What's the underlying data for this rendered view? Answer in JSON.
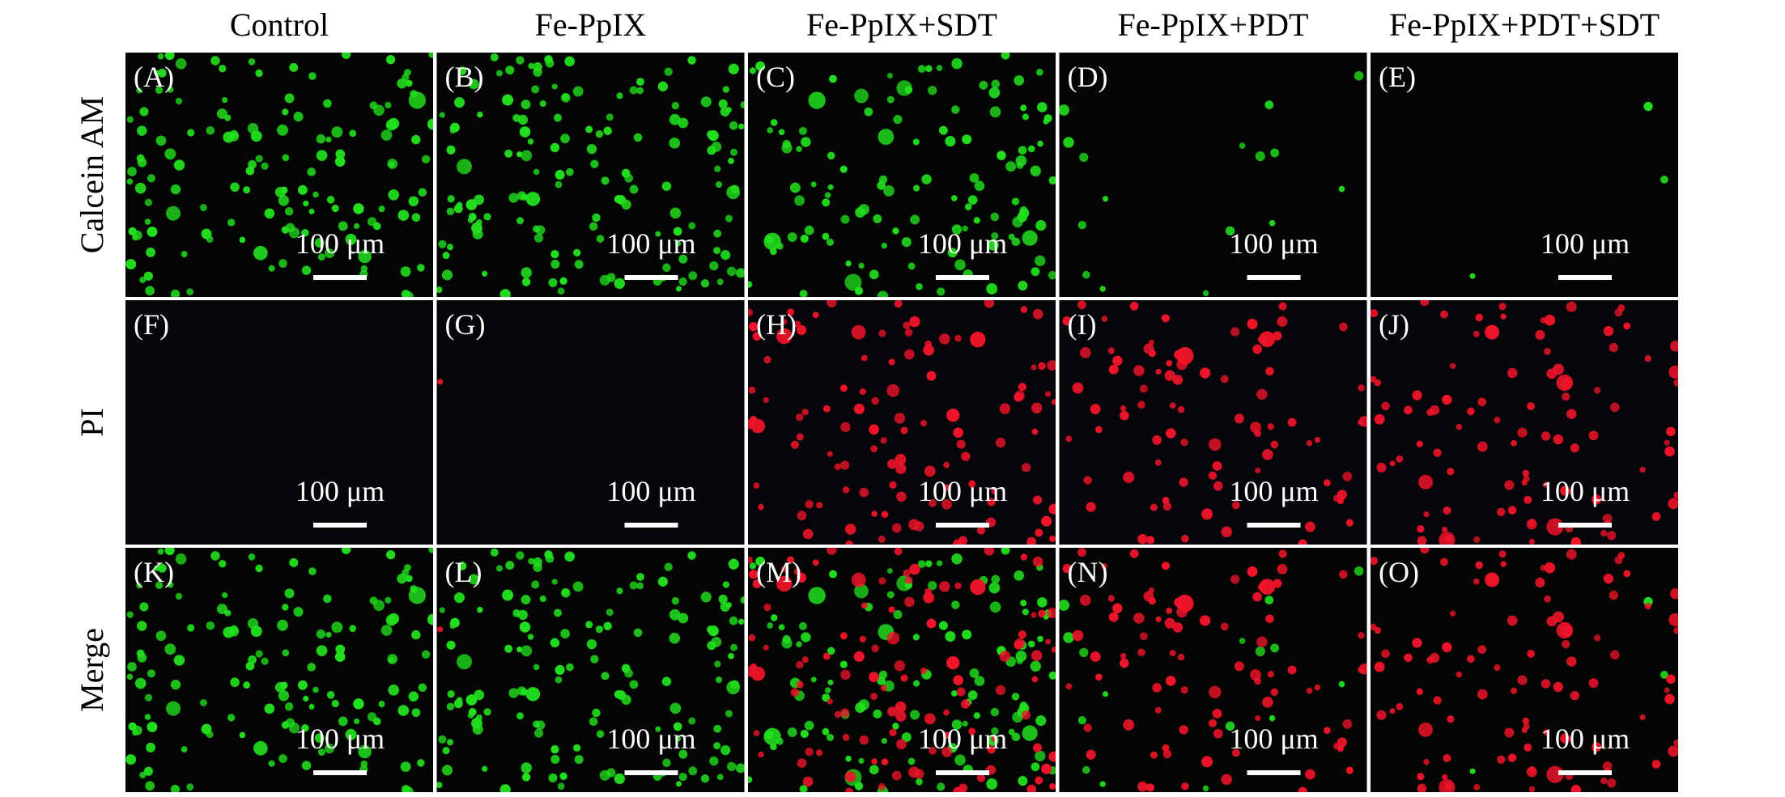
{
  "columns": [
    "Control",
    "Fe-PpIX",
    "Fe-PpIX+SDT",
    "Fe-PpIX+PDT",
    "Fe-PpIX+PDT+SDT"
  ],
  "rows": [
    "Calcein AM",
    "PI",
    "Merge"
  ],
  "panels": [
    [
      {
        "label": "(A)",
        "scale": "100 μm"
      },
      {
        "label": "(B)",
        "scale": "100 μm"
      },
      {
        "label": "(C)",
        "scale": "100 μm"
      },
      {
        "label": "(D)",
        "scale": "100 μm"
      },
      {
        "label": "(E)",
        "scale": "100 μm"
      }
    ],
    [
      {
        "label": "(F)",
        "scale": "100 μm"
      },
      {
        "label": "(G)",
        "scale": "100 μm"
      },
      {
        "label": "(H)",
        "scale": "100 μm"
      },
      {
        "label": "(I)",
        "scale": "100 μm"
      },
      {
        "label": "(J)",
        "scale": "100 μm"
      }
    ],
    [
      {
        "label": "(K)",
        "scale": "100 μm"
      },
      {
        "label": "(L)",
        "scale": "100 μm"
      },
      {
        "label": "(M)",
        "scale": "100 μm"
      },
      {
        "label": "(N)",
        "scale": "100 μm"
      },
      {
        "label": "(O)",
        "scale": "100 μm"
      }
    ]
  ]
}
